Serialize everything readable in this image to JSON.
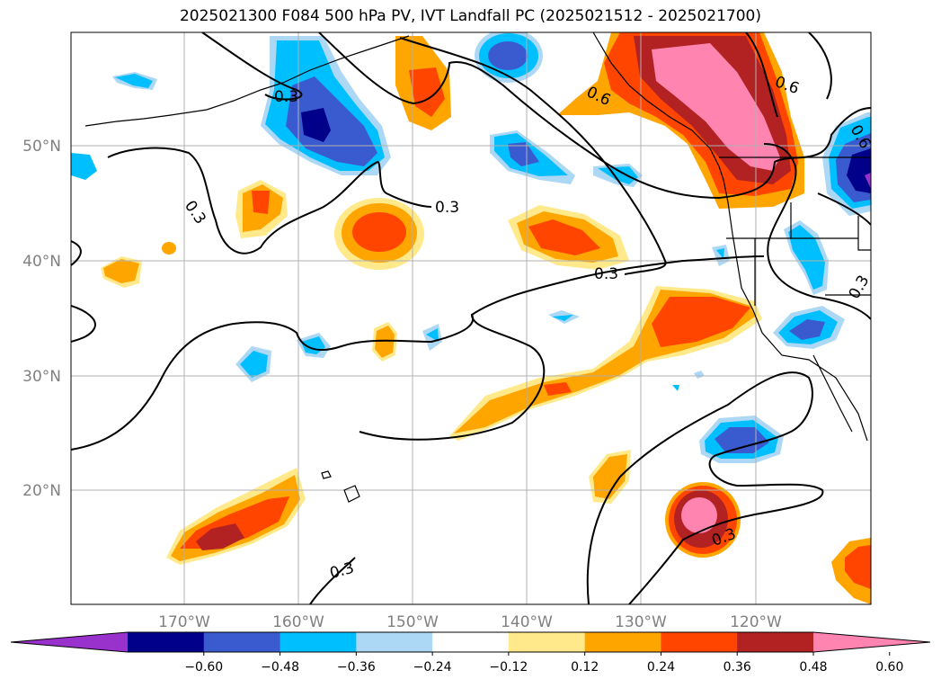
{
  "title": "2025021300 F084 500 hPa PV, IVT Landfall PC (2025021512 - 2025021700)",
  "lat_labels": [
    "50°N",
    "40°N",
    "30°N",
    "20°N"
  ],
  "lon_labels": [
    "170°W",
    "160°W",
    "150°W",
    "140°W",
    "130°W",
    "120°W"
  ],
  "contour_labels": [
    "0.3",
    "0.3",
    "0.3",
    "0.3",
    "0.6",
    "0.6",
    "0.6",
    "0.3",
    "0.3",
    "0.3"
  ],
  "colorbar": {
    "ticks": [
      "−0.60",
      "−0.48",
      "−0.36",
      "−0.24",
      "−0.12",
      "0.12",
      "0.24",
      "0.36",
      "0.48",
      "0.60"
    ],
    "colors": [
      "#9932cc",
      "#00008b",
      "#3a5bcf",
      "#00bfff",
      "#add8f5",
      "#ffffff",
      "#ffe98a",
      "#ffa500",
      "#ff4500",
      "#b22222",
      "#ff85b0"
    ]
  }
}
